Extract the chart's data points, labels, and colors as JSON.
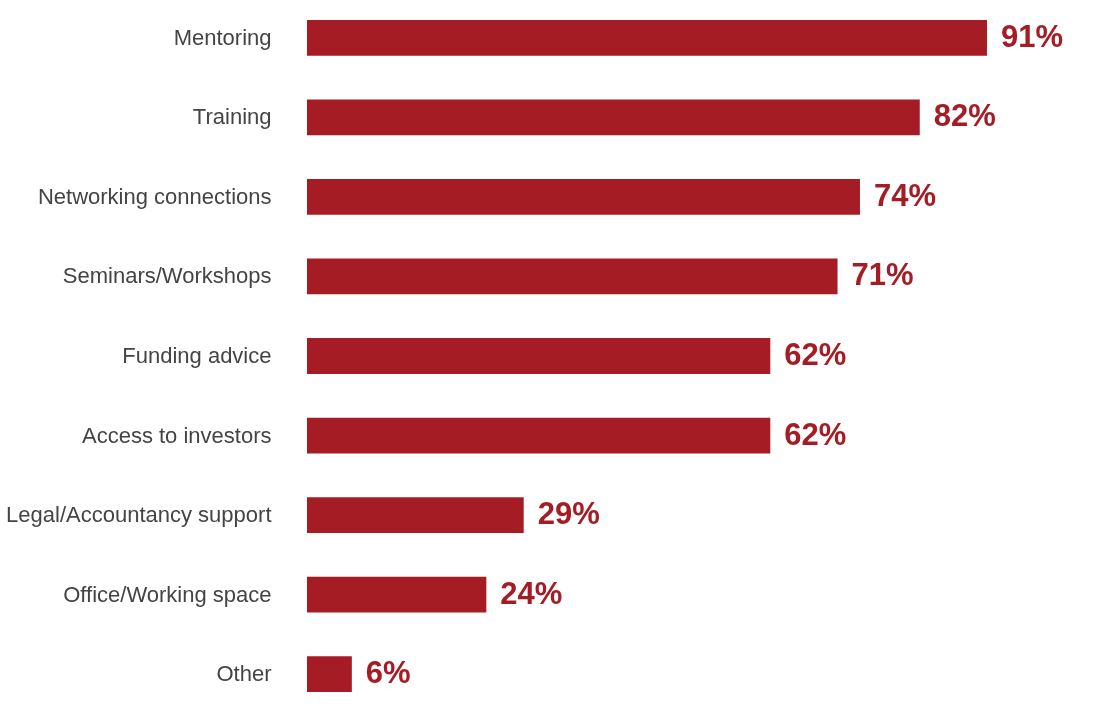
{
  "chart_data": {
    "type": "bar",
    "orientation": "horizontal",
    "categories": [
      "Mentoring",
      "Training",
      "Networking connections",
      "Seminars/Workshops",
      "Funding advice",
      "Access to investors",
      "Legal/Accountancy support",
      "Office/Working space",
      "Other"
    ],
    "values": [
      91,
      82,
      74,
      71,
      62,
      62,
      29,
      24,
      6
    ],
    "value_labels": [
      "91%",
      "82%",
      "74%",
      "71%",
      "62%",
      "62%",
      "29%",
      "24%",
      "6%"
    ],
    "color": "#a51c24"
  }
}
